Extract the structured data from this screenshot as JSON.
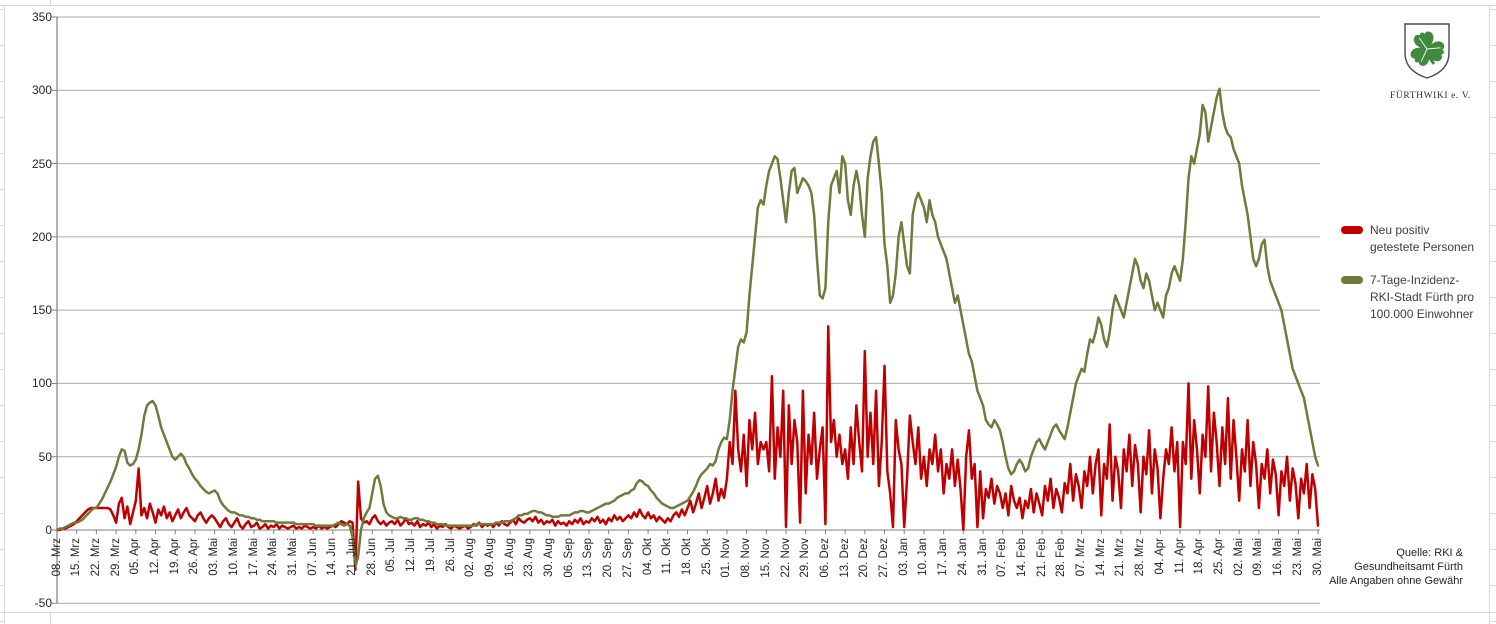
{
  "legend": {
    "series1": {
      "label": "Neu positiv\ngetestete Personen",
      "color": "#C00000"
    },
    "series2": {
      "label": "7-Tage-Inzidenz-\nRKI-Stadt Fürth pro\n100.000 Einwohner",
      "color": "#6F7B3C"
    }
  },
  "logo": {
    "caption": "FÜRTHWIKI e. V."
  },
  "source_note": "Quelle: RKI &\nGesundheitsamt Fürth\nAlle Angaben ohne Gewähr",
  "chart_data": {
    "type": "line",
    "title": "",
    "xlabel": "",
    "ylabel": "",
    "ylim": [
      -50,
      350
    ],
    "y_ticks": [
      350,
      300,
      250,
      200,
      150,
      100,
      50,
      0,
      -50
    ],
    "grid": true,
    "legend_position": "right",
    "x_tick_interval_days": 7,
    "x_tick_labels": [
      "08. Mrz",
      "15. Mrz",
      "22. Mrz",
      "29. Mrz",
      "05. Apr",
      "12. Apr",
      "19. Apr",
      "26. Apr",
      "03. Mai",
      "10. Mai",
      "17. Mai",
      "24. Mai",
      "31. Mai",
      "07. Jun",
      "14. Jun",
      "21. Jun",
      "28. Jun",
      "05. Jul",
      "12. Jul",
      "19. Jul",
      "26. Jul",
      "02. Aug",
      "09. Aug",
      "16. Aug",
      "23. Aug",
      "30. Aug",
      "06. Sep",
      "13. Sep",
      "20. Sep",
      "27. Sep",
      "04. Okt",
      "11. Okt",
      "18. Okt",
      "25. Okt",
      "01. Nov",
      "08. Nov",
      "15. Nov",
      "22. Nov",
      "29. Nov",
      "06. Dez",
      "13. Dez",
      "20. Dez",
      "27. Dez",
      "03. Jan",
      "10. Jan",
      "17. Jan",
      "24. Jan",
      "31. Jan",
      "07. Feb",
      "14. Feb",
      "21. Feb",
      "28. Feb",
      "07. Mrz",
      "14. Mrz",
      "21. Mrz",
      "28. Mrz",
      "04. Apr",
      "11. Apr",
      "18. Apr",
      "25. Apr",
      "02. Mai",
      "09. Mai",
      "16. Mai",
      "23. Mai",
      "30. Mai"
    ],
    "series": [
      {
        "name": "Neu positiv getestete Personen",
        "color": "#C00000",
        "values": [
          0,
          0,
          1,
          1,
          2,
          3,
          4,
          6,
          8,
          10,
          12,
          14,
          15,
          15,
          15,
          15,
          15,
          15,
          15,
          14,
          10,
          5,
          18,
          22,
          8,
          16,
          4,
          12,
          20,
          42,
          10,
          15,
          8,
          18,
          12,
          5,
          14,
          10,
          16,
          8,
          12,
          6,
          10,
          14,
          8,
          12,
          15,
          10,
          8,
          6,
          10,
          12,
          8,
          5,
          8,
          10,
          8,
          5,
          2,
          6,
          8,
          4,
          2,
          5,
          8,
          3,
          1,
          4,
          6,
          2,
          3,
          5,
          1,
          2,
          4,
          1,
          3,
          2,
          4,
          1,
          3,
          2,
          1,
          2,
          3,
          1,
          2,
          1,
          3,
          2,
          1,
          2,
          1,
          3,
          1,
          2,
          1,
          2,
          3,
          2,
          4,
          6,
          5,
          4,
          6,
          5,
          -27,
          33,
          8,
          5,
          6,
          4,
          8,
          10,
          6,
          4,
          6,
          3,
          5,
          6,
          4,
          7,
          3,
          5,
          8,
          4,
          5,
          3,
          6,
          2,
          4,
          3,
          5,
          2,
          4,
          1,
          3,
          2,
          4,
          2,
          1,
          3,
          2,
          1,
          2,
          3,
          1,
          2,
          4,
          3,
          5,
          2,
          4,
          3,
          4,
          2,
          5,
          3,
          6,
          4,
          3,
          5,
          7,
          4,
          8,
          6,
          5,
          7,
          8,
          6,
          9,
          5,
          7,
          4,
          6,
          5,
          7,
          3,
          6,
          4,
          5,
          3,
          6,
          4,
          7,
          5,
          8,
          4,
          6,
          5,
          8,
          6,
          9,
          5,
          7,
          4,
          8,
          6,
          10,
          7,
          9,
          6,
          8,
          10,
          8,
          12,
          9,
          14,
          10,
          8,
          12,
          8,
          10,
          6,
          9,
          7,
          5,
          8,
          6,
          10,
          12,
          9,
          14,
          10,
          15,
          20,
          12,
          18,
          25,
          15,
          22,
          30,
          18,
          25,
          35,
          20,
          28,
          22,
          35,
          60,
          45,
          95,
          55,
          40,
          65,
          30,
          75,
          55,
          80,
          45,
          60,
          55,
          60,
          40,
          105,
          35,
          70,
          50,
          95,
          2,
          85,
          45,
          75,
          60,
          5,
          95,
          25,
          65,
          45,
          80,
          35,
          55,
          70,
          4,
          139,
          60,
          75,
          50,
          65,
          45,
          55,
          35,
          70,
          45,
          85,
          60,
          40,
          122,
          50,
          80,
          45,
          95,
          30,
          60,
          112,
          40,
          25,
          2,
          75,
          55,
          45,
          2,
          35,
          78,
          60,
          45,
          70,
          35,
          50,
          30,
          55,
          45,
          65,
          40,
          55,
          25,
          45,
          35,
          55,
          30,
          48,
          28,
          0,
          50,
          68,
          35,
          45,
          2,
          40,
          8,
          28,
          22,
          35,
          18,
          30,
          25,
          15,
          25,
          10,
          30,
          20,
          15,
          22,
          8,
          20,
          15,
          28,
          12,
          25,
          18,
          10,
          30,
          20,
          35,
          15,
          28,
          22,
          12,
          32,
          25,
          45,
          20,
          38,
          30,
          15,
          40,
          30,
          50,
          25,
          45,
          55,
          10,
          45,
          35,
          72,
          20,
          50,
          40,
          15,
          55,
          40,
          65,
          30,
          58,
          45,
          12,
          50,
          38,
          68,
          25,
          55,
          42,
          8,
          35,
          55,
          45,
          70,
          40,
          60,
          2,
          60,
          45,
          100,
          35,
          75,
          55,
          25,
          65,
          50,
          98,
          40,
          80,
          60,
          30,
          70,
          45,
          90,
          35,
          75,
          50,
          20,
          55,
          40,
          75,
          30,
          60,
          45,
          15,
          45,
          35,
          55,
          25,
          48,
          38,
          10,
          40,
          30,
          50,
          20,
          42,
          32,
          8,
          35,
          25,
          45,
          15,
          38,
          28,
          3
        ]
      },
      {
        "name": "7-Tage-Inzidenz-RKI-Stadt Fürth pro 100.000 Einwohner",
        "color": "#6F7B3C",
        "values": [
          0,
          1,
          1,
          2,
          3,
          4,
          5,
          5,
          6,
          7,
          9,
          11,
          13,
          15,
          15,
          18,
          21,
          25,
          29,
          33,
          38,
          43,
          50,
          55,
          54,
          46,
          44,
          45,
          48,
          55,
          65,
          78,
          85,
          87,
          88,
          85,
          78,
          70,
          65,
          60,
          55,
          50,
          48,
          50,
          52,
          50,
          45,
          42,
          38,
          35,
          33,
          30,
          28,
          26,
          25,
          26,
          27,
          25,
          20,
          17,
          15,
          13,
          12,
          12,
          11,
          10,
          10,
          9,
          9,
          8,
          8,
          7,
          7,
          6,
          6,
          6,
          6,
          6,
          5,
          5,
          5,
          5,
          5,
          5,
          5,
          4,
          4,
          4,
          4,
          4,
          4,
          4,
          3,
          3,
          3,
          3,
          3,
          3,
          3,
          4,
          5,
          4,
          3,
          4,
          3,
          -5,
          -25,
          -18,
          0,
          8,
          12,
          15,
          25,
          35,
          37,
          30,
          18,
          12,
          10,
          9,
          8,
          8,
          9,
          8,
          8,
          7,
          7,
          8,
          8,
          7,
          7,
          6,
          6,
          5,
          5,
          4,
          4,
          4,
          3,
          3,
          3,
          3,
          3,
          3,
          3,
          3,
          3,
          3,
          3,
          4,
          4,
          4,
          4,
          4,
          4,
          4,
          5,
          5,
          5,
          6,
          6,
          6,
          7,
          8,
          10,
          10,
          11,
          11,
          12,
          13,
          13,
          12,
          12,
          11,
          10,
          10,
          9,
          9,
          9,
          10,
          10,
          10,
          10,
          11,
          12,
          12,
          13,
          13,
          12,
          12,
          13,
          14,
          15,
          16,
          17,
          18,
          18,
          19,
          20,
          22,
          23,
          24,
          25,
          25,
          27,
          28,
          32,
          34,
          33,
          31,
          30,
          27,
          25,
          22,
          20,
          18,
          17,
          16,
          15,
          15,
          16,
          17,
          18,
          19,
          20,
          23,
          26,
          30,
          35,
          38,
          40,
          42,
          45,
          44,
          47,
          55,
          60,
          63,
          62,
          75,
          95,
          110,
          125,
          130,
          128,
          135,
          160,
          180,
          200,
          220,
          225,
          222,
          235,
          245,
          250,
          255,
          253,
          240,
          225,
          210,
          230,
          245,
          247,
          230,
          235,
          240,
          238,
          235,
          230,
          215,
          185,
          160,
          158,
          165,
          210,
          235,
          240,
          245,
          230,
          255,
          250,
          225,
          215,
          235,
          245,
          235,
          215,
          200,
          240,
          255,
          265,
          268,
          250,
          230,
          195,
          180,
          155,
          160,
          175,
          200,
          210,
          195,
          180,
          175,
          215,
          225,
          230,
          225,
          220,
          210,
          225,
          215,
          210,
          200,
          195,
          190,
          185,
          175,
          165,
          155,
          160,
          150,
          140,
          130,
          120,
          115,
          105,
          95,
          90,
          85,
          75,
          72,
          70,
          75,
          72,
          68,
          60,
          50,
          42,
          38,
          40,
          45,
          48,
          45,
          40,
          42,
          50,
          55,
          60,
          62,
          58,
          55,
          60,
          65,
          70,
          72,
          68,
          65,
          62,
          70,
          80,
          90,
          100,
          105,
          110,
          108,
          120,
          130,
          128,
          135,
          145,
          140,
          130,
          125,
          135,
          150,
          160,
          155,
          150,
          145,
          155,
          165,
          175,
          185,
          180,
          170,
          165,
          175,
          170,
          160,
          150,
          155,
          150,
          145,
          160,
          165,
          175,
          180,
          175,
          170,
          185,
          210,
          240,
          255,
          250,
          260,
          270,
          290,
          285,
          265,
          275,
          285,
          295,
          301,
          285,
          275,
          270,
          268,
          260,
          255,
          250,
          235,
          225,
          215,
          200,
          185,
          180,
          185,
          195,
          198,
          180,
          170,
          165,
          160,
          155,
          150,
          140,
          130,
          120,
          110,
          105,
          100,
          95,
          90,
          80,
          70,
          60,
          50,
          44
        ]
      }
    ]
  }
}
